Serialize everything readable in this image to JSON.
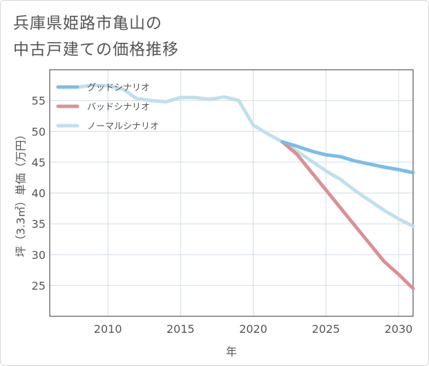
{
  "title_lines": [
    "兵庫県姫路市亀山の",
    "中古戸建ての価格推移"
  ],
  "chart_data": {
    "type": "line",
    "xlabel": "年",
    "ylabel": "坪（3.3㎡）単価（万円）",
    "xlim": [
      2006,
      2031
    ],
    "ylim": [
      20,
      60
    ],
    "x_ticks": [
      2010,
      2015,
      2020,
      2025,
      2030
    ],
    "y_ticks": [
      25,
      30,
      35,
      40,
      45,
      50,
      55
    ],
    "grid": true,
    "legend_position": "top-left",
    "series": [
      {
        "name": "グッドシナリオ",
        "color": "#7bbcea",
        "x": [
          2022,
          2023,
          2024,
          2025,
          2026,
          2027,
          2028,
          2029,
          2030,
          2031
        ],
        "y": [
          48.3,
          47.6,
          46.8,
          46.2,
          45.9,
          45.2,
          44.7,
          44.2,
          43.8,
          43.3
        ]
      },
      {
        "name": "バッドシナリオ",
        "color": "#dd8f96",
        "x": [
          2022,
          2023,
          2024,
          2025,
          2026,
          2027,
          2028,
          2029,
          2030,
          2031
        ],
        "y": [
          48.3,
          46.3,
          43.4,
          40.5,
          37.6,
          34.7,
          31.8,
          28.9,
          26.8,
          24.5
        ]
      },
      {
        "name": "ノーマルシナリオ",
        "color": "#bfe0ee",
        "x": [
          2008,
          2009,
          2010,
          2011,
          2012,
          2013,
          2014,
          2015,
          2016,
          2017,
          2018,
          2019,
          2020,
          2021,
          2022,
          2023,
          2024,
          2025,
          2026,
          2027,
          2028,
          2029,
          2030,
          2031
        ],
        "y": [
          57.2,
          57.5,
          57.4,
          56.9,
          55.3,
          55.0,
          54.8,
          55.5,
          55.5,
          55.2,
          55.6,
          55.0,
          51.0,
          49.6,
          48.3,
          46.8,
          45.2,
          43.6,
          42.2,
          40.4,
          38.8,
          37.2,
          35.8,
          34.6
        ]
      }
    ]
  }
}
